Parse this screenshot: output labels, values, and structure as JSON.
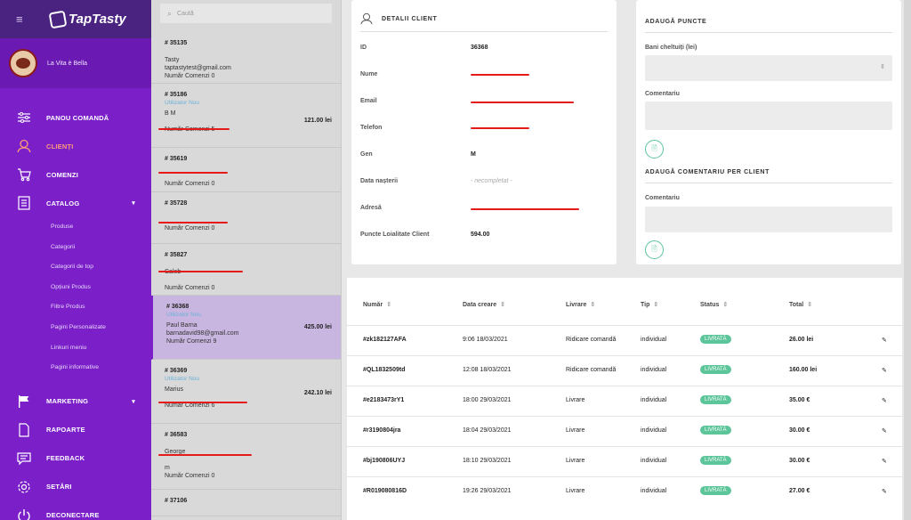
{
  "app": {
    "logo": "TapTasty",
    "menu_icon": "hamburger-icon",
    "accent": "#7b1fc8",
    "active": "#ff9a7a",
    "success": "#5cc59a"
  },
  "user": {
    "name": "La Vita è Bella"
  },
  "menu": [
    {
      "label": "PANOU COMANDĂ",
      "icon": "sliders-icon"
    },
    {
      "label": "CLIENȚI",
      "icon": "user-icon",
      "active": true
    },
    {
      "label": "COMENZI",
      "icon": "cart-icon"
    },
    {
      "label": "CATALOG",
      "icon": "catalog-icon",
      "caret": "▾"
    }
  ],
  "catalog_sub": [
    "Produse",
    "Categorii",
    "Categorii de top",
    "Opțiuni Produs",
    "Filtre Produs",
    "Pagini Personalizate",
    "Linkuri meniu",
    "Pagini informative"
  ],
  "menu2": [
    {
      "label": "MARKETING",
      "icon": "flag-icon",
      "caret": "▾"
    },
    {
      "label": "RAPOARTE",
      "icon": "file-icon"
    },
    {
      "label": "FEEDBACK",
      "icon": "chat-icon"
    },
    {
      "label": "SETĂRI",
      "icon": "gear-icon"
    },
    {
      "label": "DECONECTARE",
      "icon": "power-icon"
    }
  ],
  "search": {
    "placeholder": "Caută"
  },
  "clients": [
    {
      "num": "# 35135",
      "tag": "",
      "name": "Tasty",
      "email": "taptastytest@gmail.com",
      "orders": "Număr Comenzi 0",
      "amount": ""
    },
    {
      "num": "# 35186",
      "tag": "Utilizator Nou",
      "name": "B M",
      "email": "",
      "orders": "Număr Comenzi 5",
      "amount": "121.00 lei"
    },
    {
      "num": "# 35619",
      "tag": "",
      "name": "",
      "email": "",
      "orders": "Număr Comenzi 0",
      "amount": ""
    },
    {
      "num": "# 35728",
      "tag": "",
      "name": "",
      "email": "",
      "orders": "Număr Comenzi 0",
      "amount": ""
    },
    {
      "num": "# 35827",
      "tag": "",
      "name": "Caleb",
      "email": "",
      "orders": "Număr Comenzi 0",
      "amount": ""
    },
    {
      "num": "# 36368",
      "tag": "Utilizator Nou",
      "name": "Paul Barna",
      "email": "barnadavid98@gmail.com",
      "orders": "Număr Comenzi 9",
      "amount": "425.00 lei"
    },
    {
      "num": "# 36369",
      "tag": "Utilizator Nou",
      "name": "Marius",
      "email": "",
      "orders": "Număr Comenzi 6",
      "amount": "242.10 lei"
    },
    {
      "num": "# 36583",
      "tag": "",
      "name": "George",
      "email": "m",
      "orders": "Număr Comenzi 0",
      "amount": ""
    },
    {
      "num": "# 37106",
      "tag": "",
      "name": "",
      "email": "",
      "orders": "",
      "amount": ""
    }
  ],
  "details": {
    "title": "DETALII CLIENT",
    "rows": [
      {
        "k": "ID",
        "v": "36368"
      },
      {
        "k": "Nume",
        "v": ""
      },
      {
        "k": "Email",
        "v": ""
      },
      {
        "k": "Telefon",
        "v": ""
      },
      {
        "k": "Gen",
        "v": "M"
      },
      {
        "k": "Data nașterii",
        "v": "- necompletat -"
      },
      {
        "k": "Adresă",
        "v": ""
      },
      {
        "k": "Puncte Loialitate Client",
        "v": "594.00"
      }
    ]
  },
  "points": {
    "title": "ADAUGĂ PUNCTE",
    "spent_label": "Bani cheltuiți (lei)",
    "comment_label": "Comentariu",
    "comment2_title": "ADAUGĂ COMENTARIU PER CLIENT",
    "comment2_label": "Comentariu",
    "spin_icon": "spinner-icon",
    "save_icon": "save-icon"
  },
  "table": {
    "headers": [
      "Număr",
      "Data creare",
      "Livrare",
      "Tip",
      "Status",
      "Total"
    ],
    "sort_icon": "⇕",
    "rows": [
      {
        "num": "#zk182127AFA",
        "date": "9:06 18/03/2021",
        "delivery": "Ridicare comandă",
        "type": "individual",
        "status": "LIVRATĂ",
        "total": "26.00 lei"
      },
      {
        "num": "#QL1832509td",
        "date": "12:08 18/03/2021",
        "delivery": "Ridicare comandă",
        "type": "individual",
        "status": "LIVRATĂ",
        "total": "160.00 lei"
      },
      {
        "num": "#e2183473rY1",
        "date": "18:00 29/03/2021",
        "delivery": "Livrare",
        "type": "individual",
        "status": "LIVRATĂ",
        "total": "35.00 €"
      },
      {
        "num": "#r3190804jra",
        "date": "18:04 29/03/2021",
        "delivery": "Livrare",
        "type": "individual",
        "status": "LIVRATĂ",
        "total": "30.00 €"
      },
      {
        "num": "#bj190806UYJ",
        "date": "18:10 29/03/2021",
        "delivery": "Livrare",
        "type": "individual",
        "status": "LIVRATĂ",
        "total": "30.00 €"
      },
      {
        "num": "#R019080816D",
        "date": "19:26 29/03/2021",
        "delivery": "Livrare",
        "type": "individual",
        "status": "LIVRATĂ",
        "total": "27.00 €"
      }
    ]
  }
}
